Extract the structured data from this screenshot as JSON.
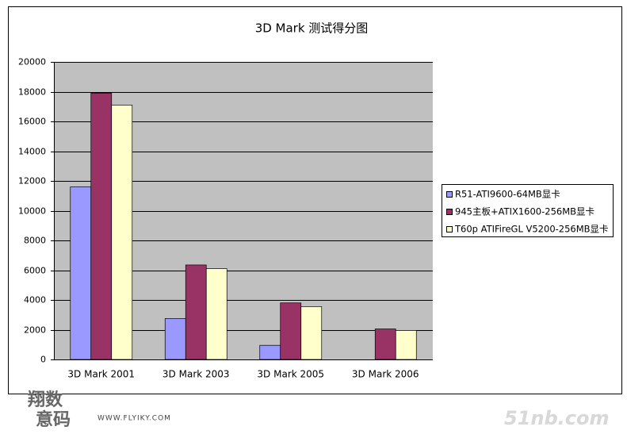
{
  "chart_data": {
    "type": "bar",
    "title": "3D Mark 测试得分图",
    "categories": [
      "3D Mark 2001",
      "3D Mark 2003",
      "3D Mark 2005",
      "3D Mark 2006"
    ],
    "series": [
      {
        "name": "R51-ATI9600-64MB显卡",
        "color": "#9999ff",
        "values": [
          11600,
          2750,
          950,
          null
        ]
      },
      {
        "name": "945主板+ATIX1600-256MB显卡",
        "color": "#993366",
        "values": [
          17900,
          6350,
          3800,
          2050
        ]
      },
      {
        "name": "T60p ATIFireGL V5200-256MB显卡",
        "color": "#ffffcc",
        "values": [
          17100,
          6100,
          3550,
          1950
        ]
      }
    ],
    "ylim": [
      0,
      20000
    ],
    "yticks": [
      0,
      2000,
      4000,
      6000,
      8000,
      10000,
      12000,
      14000,
      16000,
      18000,
      20000
    ],
    "grid": true,
    "legend": "right"
  },
  "watermarks": [
    "翔数",
    "意码",
    "WWW.FLYIKY.COM",
    "51nb.com"
  ]
}
